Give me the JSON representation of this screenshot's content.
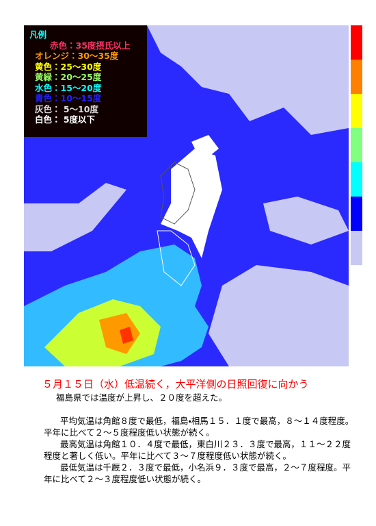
{
  "legend": {
    "title": "凡例",
    "items": [
      "赤色：35度摂氏以上",
      "オレンジ：30〜35度",
      "黄色：25〜30度",
      "黄緑：20〜25度",
      "水色：15〜20度",
      "青色：10〜15度",
      "灰色： 5〜10度",
      "白色： 5度以下"
    ]
  },
  "headline": "５月１５日（水）低温続く，大平洋側の日照回復に向かう",
  "summary": "福島県では温度が上昇し、２０度を超えた。",
  "paragraphs": [
    "平均気温は角館８度で最低，福島・相馬１５．１度で最高，８〜１４度程度。平年に比べて２〜５度程度低い状態が続く。",
    "最高気温は角館１０．４度で最低，東白川２３．３度で最高，１１〜２２度程度と著しく低い。平年に比べて３〜７度程度低い状態が続く。",
    "最低気温は千厩２．３度で最低，小名浜９．３度で最高，２〜７度程度。平年に比べて２〜３度程度低い状態が続く。"
  ]
}
